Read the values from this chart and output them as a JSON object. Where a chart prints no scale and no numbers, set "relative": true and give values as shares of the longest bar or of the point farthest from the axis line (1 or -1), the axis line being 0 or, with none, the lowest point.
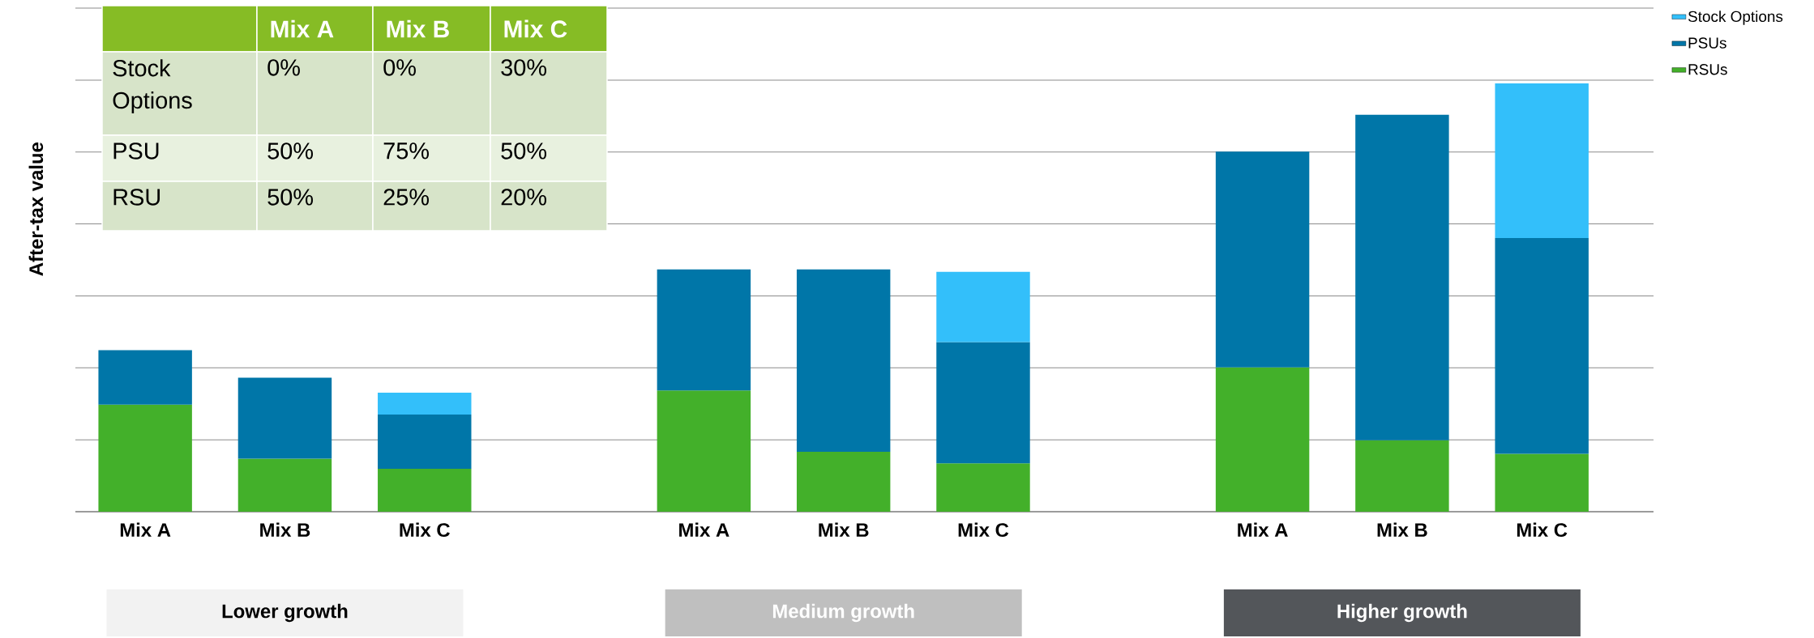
{
  "chart_data": {
    "type": "bar",
    "stacked": true,
    "relative": true,
    "ylabel": "After-tax value",
    "legend": "top right",
    "grid": "y",
    "categories": [
      "Mix A",
      "Mix B",
      "Mix C",
      null,
      "Mix A",
      "Mix B",
      "Mix C",
      null,
      "Mix A",
      "Mix B",
      "Mix C"
    ],
    "series": [
      {
        "name": "RSUs",
        "color": "#43b02a",
        "values": [
          0.25,
          0.124,
          0.1,
          null,
          0.283,
          0.14,
          0.113,
          null,
          0.337,
          0.167,
          0.135
        ]
      },
      {
        "name": "PSUs",
        "color": "#0076a8",
        "values": [
          0.127,
          0.189,
          0.127,
          null,
          0.283,
          0.426,
          0.283,
          null,
          0.504,
          0.76,
          0.504
        ]
      },
      {
        "name": "Stock Options",
        "color": "#33bffa",
        "values": [
          null,
          null,
          0.051,
          null,
          null,
          null,
          0.164,
          null,
          null,
          null,
          0.361
        ]
      }
    ],
    "annotations": [
      "Mix A",
      "Mix B",
      "Mix C",
      "Stock Options",
      "0%",
      "0%",
      "30%",
      "PSU",
      "50%",
      "75%",
      "50%",
      "RSU",
      "50%",
      "25%",
      "20%",
      "Lower growth",
      "Medium growth",
      "Higher growth"
    ]
  }
}
